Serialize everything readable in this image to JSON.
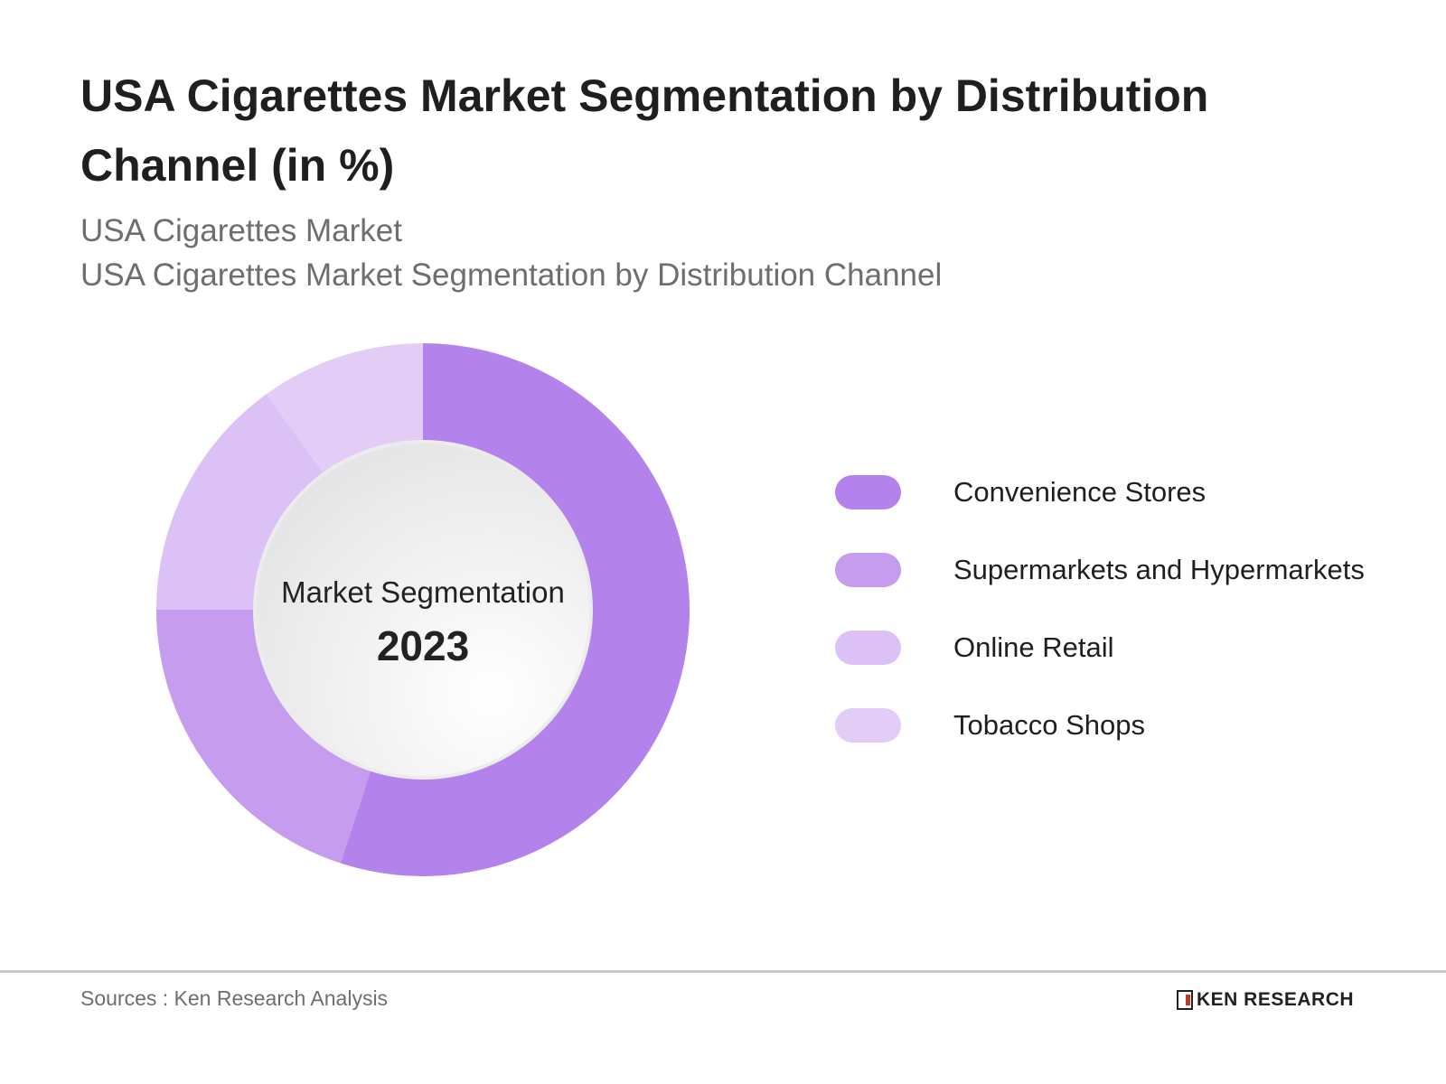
{
  "title": "USA Cigarettes Market Segmentation by Distribution Channel (in %)",
  "subtitle_1": "USA Cigarettes Market",
  "subtitle_2": "USA Cigarettes Market Segmentation by Distribution Channel",
  "chart_data": {
    "type": "pie",
    "variant": "donut",
    "center_label": "Market Segmentation",
    "center_year": "2023",
    "categories": [
      "Convenience Stores",
      "Supermarkets and Hypermarkets",
      "Online Retail",
      "Tobacco Shops"
    ],
    "values": [
      55,
      20,
      15,
      10
    ],
    "colors": [
      "#b383eb",
      "#c59cee",
      "#dcc1f7",
      "#e3cdf7"
    ],
    "legend_position": "right"
  },
  "footer": {
    "source": "Sources : Ken Research Analysis",
    "logo_text": "KEN RESEARCH"
  }
}
